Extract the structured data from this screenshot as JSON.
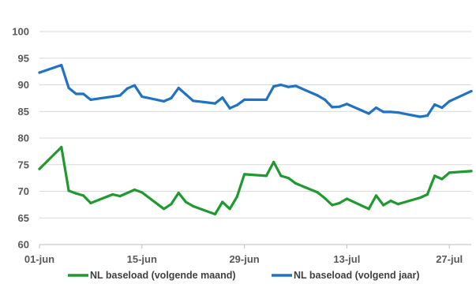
{
  "chart_data": {
    "type": "line",
    "title": "",
    "xlabel": "",
    "ylabel": "",
    "ylim": [
      60,
      100
    ],
    "yticks": [
      60,
      65,
      70,
      75,
      80,
      85,
      90,
      95,
      100
    ],
    "xlim": [
      "2021-06-01",
      "2021-07-30"
    ],
    "xticks": [
      {
        "date": "2021-06-01",
        "label": "01-jun"
      },
      {
        "date": "2021-06-15",
        "label": "15-jun"
      },
      {
        "date": "2021-06-29",
        "label": "29-jun"
      },
      {
        "date": "2021-07-13",
        "label": "13-jul"
      },
      {
        "date": "2021-07-27",
        "label": "27-jul"
      }
    ],
    "grid": true,
    "legend": "bottom",
    "series": [
      {
        "name": "NL baseload (volgende maand)",
        "color": "#1f9a2e",
        "points": [
          [
            "2021-06-01",
            74.2
          ],
          [
            "2021-06-04",
            78.3
          ],
          [
            "2021-06-05",
            70.1
          ],
          [
            "2021-06-06",
            69.6
          ],
          [
            "2021-06-07",
            69.2
          ],
          [
            "2021-06-08",
            67.8
          ],
          [
            "2021-06-11",
            69.4
          ],
          [
            "2021-06-12",
            69.1
          ],
          [
            "2021-06-14",
            70.3
          ],
          [
            "2021-06-15",
            69.8
          ],
          [
            "2021-06-18",
            66.7
          ],
          [
            "2021-06-19",
            67.6
          ],
          [
            "2021-06-20",
            69.7
          ],
          [
            "2021-06-21",
            68.0
          ],
          [
            "2021-06-22",
            67.2
          ],
          [
            "2021-06-25",
            65.7
          ],
          [
            "2021-06-26",
            68.0
          ],
          [
            "2021-06-27",
            66.7
          ],
          [
            "2021-06-28",
            69.0
          ],
          [
            "2021-06-29",
            73.2
          ],
          [
            "2021-07-02",
            72.9
          ],
          [
            "2021-07-03",
            75.5
          ],
          [
            "2021-07-04",
            72.9
          ],
          [
            "2021-07-05",
            72.5
          ],
          [
            "2021-07-06",
            71.5
          ],
          [
            "2021-07-09",
            69.8
          ],
          [
            "2021-07-10",
            68.7
          ],
          [
            "2021-07-11",
            67.4
          ],
          [
            "2021-07-12",
            67.8
          ],
          [
            "2021-07-13",
            68.6
          ],
          [
            "2021-07-16",
            66.7
          ],
          [
            "2021-07-17",
            69.2
          ],
          [
            "2021-07-18",
            67.4
          ],
          [
            "2021-07-19",
            68.2
          ],
          [
            "2021-07-20",
            67.6
          ],
          [
            "2021-07-23",
            68.8
          ],
          [
            "2021-07-24",
            69.4
          ],
          [
            "2021-07-25",
            72.9
          ],
          [
            "2021-07-26",
            72.3
          ],
          [
            "2021-07-27",
            73.5
          ],
          [
            "2021-07-30",
            73.8
          ]
        ]
      },
      {
        "name": "NL baseload (volgend jaar)",
        "color": "#1f72c4",
        "points": [
          [
            "2021-06-01",
            92.3
          ],
          [
            "2021-06-04",
            93.7
          ],
          [
            "2021-06-05",
            89.4
          ],
          [
            "2021-06-06",
            88.3
          ],
          [
            "2021-06-07",
            88.3
          ],
          [
            "2021-06-08",
            87.2
          ],
          [
            "2021-06-11",
            87.8
          ],
          [
            "2021-06-12",
            88.0
          ],
          [
            "2021-06-13",
            89.3
          ],
          [
            "2021-06-14",
            89.9
          ],
          [
            "2021-06-15",
            87.8
          ],
          [
            "2021-06-18",
            86.9
          ],
          [
            "2021-06-19",
            87.5
          ],
          [
            "2021-06-20",
            89.4
          ],
          [
            "2021-06-21",
            88.2
          ],
          [
            "2021-06-22",
            87.0
          ],
          [
            "2021-06-25",
            86.5
          ],
          [
            "2021-06-26",
            87.6
          ],
          [
            "2021-06-27",
            85.6
          ],
          [
            "2021-06-28",
            86.2
          ],
          [
            "2021-06-29",
            87.2
          ],
          [
            "2021-07-02",
            87.2
          ],
          [
            "2021-07-03",
            89.7
          ],
          [
            "2021-07-04",
            90.0
          ],
          [
            "2021-07-05",
            89.6
          ],
          [
            "2021-07-06",
            89.8
          ],
          [
            "2021-07-09",
            88.0
          ],
          [
            "2021-07-10",
            87.2
          ],
          [
            "2021-07-11",
            85.8
          ],
          [
            "2021-07-12",
            85.9
          ],
          [
            "2021-07-13",
            86.4
          ],
          [
            "2021-07-16",
            84.6
          ],
          [
            "2021-07-17",
            85.7
          ],
          [
            "2021-07-18",
            84.9
          ],
          [
            "2021-07-19",
            84.9
          ],
          [
            "2021-07-20",
            84.8
          ],
          [
            "2021-07-23",
            84.0
          ],
          [
            "2021-07-24",
            84.2
          ],
          [
            "2021-07-25",
            86.3
          ],
          [
            "2021-07-26",
            85.7
          ],
          [
            "2021-07-27",
            86.9
          ],
          [
            "2021-07-30",
            88.8
          ]
        ]
      }
    ]
  }
}
